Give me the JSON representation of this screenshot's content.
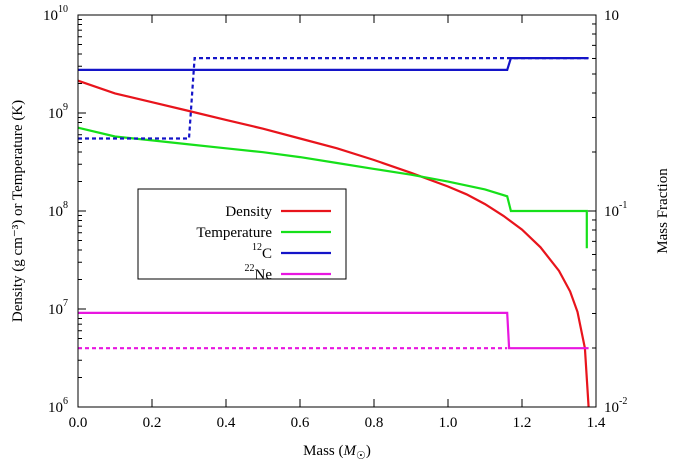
{
  "chart_data": {
    "type": "line",
    "xlabel": "Mass",
    "xlabel_unit_symbol": "M",
    "ylabel_left": "Density (g cm⁻³) or Temperature (K)",
    "ylabel_right": "Mass Fraction",
    "xlim": [
      0,
      1.4
    ],
    "ylim_left_log10": [
      6,
      10
    ],
    "ylim_right_log10": [
      -2,
      0
    ],
    "x_ticks": [
      "0.0",
      "0.2",
      "0.4",
      "0.6",
      "0.8",
      "1.0",
      "1.2",
      "1.4"
    ],
    "y_left_ticks": [
      {
        "base": "10",
        "exp": "6"
      },
      {
        "base": "10",
        "exp": "7"
      },
      {
        "base": "10",
        "exp": "8"
      },
      {
        "base": "10",
        "exp": "9"
      },
      {
        "base": "10",
        "exp": "10"
      }
    ],
    "y_right_ticks": [
      {
        "base": "10",
        "exp": "-2",
        "value": -2
      },
      {
        "base": "10",
        "exp": "-1",
        "value": -1
      },
      {
        "label": "10",
        "value": 0
      }
    ],
    "legend": [
      {
        "label": "Density",
        "color": "#e8141c"
      },
      {
        "label": "Temperature",
        "color": "#16e01a"
      },
      {
        "label": "C",
        "sup": "12",
        "color": "#1414c8"
      },
      {
        "label": "Ne",
        "sup": "22",
        "color": "#e816e0"
      }
    ],
    "series": [
      {
        "name": "Density",
        "axis": "left",
        "color": "#e8141c",
        "style": "solid",
        "points": [
          [
            0,
            9.33
          ],
          [
            0.1,
            9.2
          ],
          [
            0.2,
            9.11
          ],
          [
            0.3,
            9.02
          ],
          [
            0.4,
            8.93
          ],
          [
            0.5,
            8.84
          ],
          [
            0.6,
            8.74
          ],
          [
            0.7,
            8.64
          ],
          [
            0.8,
            8.52
          ],
          [
            0.9,
            8.39
          ],
          [
            1.0,
            8.25
          ],
          [
            1.05,
            8.17
          ],
          [
            1.1,
            8.07
          ],
          [
            1.15,
            7.95
          ],
          [
            1.2,
            7.81
          ],
          [
            1.25,
            7.63
          ],
          [
            1.3,
            7.39
          ],
          [
            1.33,
            7.18
          ],
          [
            1.35,
            6.97
          ],
          [
            1.37,
            6.6
          ],
          [
            1.38,
            6.0
          ]
        ]
      },
      {
        "name": "Temperature",
        "axis": "left",
        "color": "#16e01a",
        "style": "solid",
        "points": [
          [
            0,
            8.85
          ],
          [
            0.1,
            8.76
          ],
          [
            0.2,
            8.72
          ],
          [
            0.3,
            8.68
          ],
          [
            0.4,
            8.64
          ],
          [
            0.5,
            8.6
          ],
          [
            0.6,
            8.55
          ],
          [
            0.7,
            8.49
          ],
          [
            0.8,
            8.43
          ],
          [
            0.9,
            8.37
          ],
          [
            1.0,
            8.3
          ],
          [
            1.1,
            8.22
          ],
          [
            1.16,
            8.15
          ],
          [
            1.17,
            8.0
          ],
          [
            1.375,
            8.0
          ],
          [
            1.375,
            7.62
          ]
        ]
      },
      {
        "name": "12C",
        "axis": "right",
        "color": "#1414c8",
        "style": "solid",
        "points": [
          [
            0,
            -0.28
          ],
          [
            1.16,
            -0.28
          ],
          [
            1.17,
            -0.22
          ],
          [
            1.38,
            -0.22
          ]
        ]
      },
      {
        "name": "12C initial",
        "axis": "right",
        "color": "#1414c8",
        "style": "dashed",
        "points": [
          [
            0,
            -0.63
          ],
          [
            0.3,
            -0.63
          ],
          [
            0.315,
            -0.22
          ],
          [
            1.38,
            -0.22
          ]
        ]
      },
      {
        "name": "22Ne",
        "axis": "right",
        "color": "#e816e0",
        "style": "solid",
        "points": [
          [
            0,
            -1.52
          ],
          [
            1.16,
            -1.52
          ],
          [
            1.165,
            -1.7
          ],
          [
            1.38,
            -1.7
          ]
        ]
      },
      {
        "name": "22Ne initial",
        "axis": "right",
        "color": "#e816e0",
        "style": "dashed",
        "points": [
          [
            0,
            -1.7
          ],
          [
            1.16,
            -1.7
          ]
        ]
      }
    ]
  }
}
